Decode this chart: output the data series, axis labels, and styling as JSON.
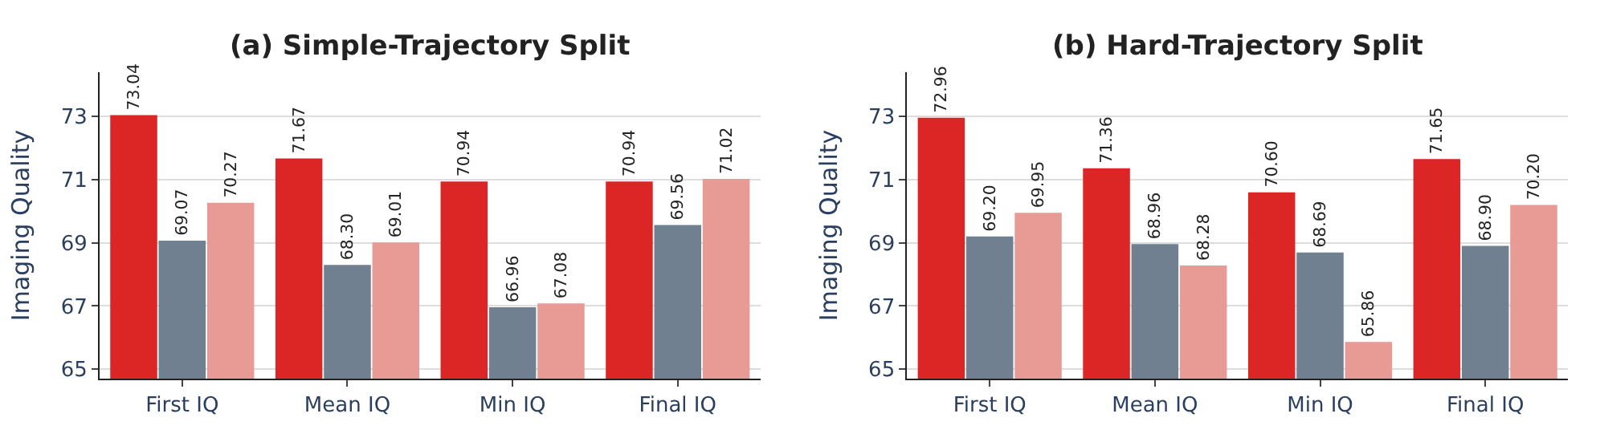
{
  "chart_data": [
    {
      "type": "bar",
      "title": "(a) Simple-Trajectory Split",
      "ylabel": "Imaging Quality",
      "categories": [
        "First IQ",
        "Mean IQ",
        "Min IQ",
        "Final IQ"
      ],
      "series": [
        {
          "color": "#dc2626",
          "values": [
            73.04,
            71.67,
            70.94,
            70.94
          ],
          "value_labels": [
            "73.04",
            "71.67",
            "70.94",
            "70.94"
          ]
        },
        {
          "color": "#708090",
          "values": [
            69.07,
            68.3,
            66.96,
            69.56
          ],
          "value_labels": [
            "69.07",
            "68.30",
            "66.96",
            "69.56"
          ]
        },
        {
          "color": "#e89a94",
          "values": [
            70.27,
            69.01,
            67.08,
            71.02
          ],
          "value_labels": [
            "70.27",
            "69.01",
            "67.08",
            "71.02"
          ]
        }
      ],
      "ylim": [
        64.7,
        74.4
      ],
      "yticks": [
        65,
        67,
        69,
        71,
        73
      ],
      "grid": "y"
    },
    {
      "type": "bar",
      "title": "(b) Hard-Trajectory Split",
      "ylabel": "Imaging Quality",
      "categories": [
        "First IQ",
        "Mean IQ",
        "Min IQ",
        "Final IQ"
      ],
      "series": [
        {
          "color": "#dc2626",
          "values": [
            72.96,
            71.36,
            70.6,
            71.65
          ],
          "value_labels": [
            "72.96",
            "71.36",
            "70.60",
            "71.65"
          ]
        },
        {
          "color": "#708090",
          "values": [
            69.2,
            68.96,
            68.69,
            68.9
          ],
          "value_labels": [
            "69.20",
            "68.96",
            "68.69",
            "68.90"
          ]
        },
        {
          "color": "#e89a94",
          "values": [
            69.95,
            68.28,
            65.86,
            70.2
          ],
          "value_labels": [
            "69.95",
            "68.28",
            "65.86",
            "70.20"
          ]
        }
      ],
      "ylim": [
        64.7,
        74.4
      ],
      "yticks": [
        65,
        67,
        69,
        71,
        73
      ],
      "grid": "y"
    }
  ]
}
